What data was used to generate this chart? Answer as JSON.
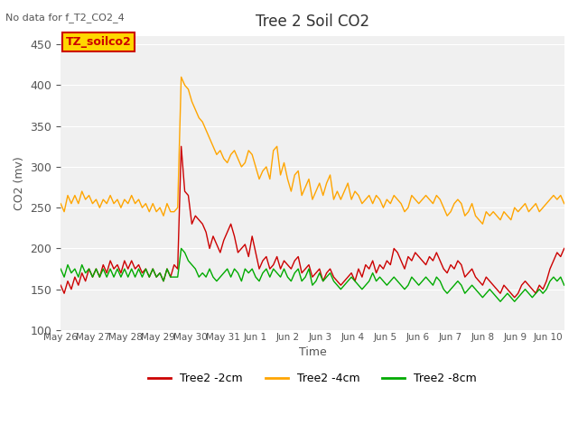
{
  "title": "Tree 2 Soil CO2",
  "subtitle": "No data for f_T2_CO2_4",
  "ylabel": "CO2 (mv)",
  "xlabel": "Time",
  "ylim": [
    100,
    460
  ],
  "xlim": [
    0,
    15.5
  ],
  "tick_labels": [
    "May 26",
    "May 27",
    "May 28",
    "May 29",
    "May 30",
    "May 31",
    "Jun 1",
    "Jun 2",
    "Jun 3",
    "Jun 4",
    "Jun 5",
    "Jun 6",
    "Jun 7",
    "Jun 8",
    "Jun 9",
    "Jun 10"
  ],
  "legend_box_label": "TZ_soilco2",
  "legend_box_color": "#FFD700",
  "legend_box_text_color": "#CC0000",
  "plot_bg_color": "#F0F0F0",
  "line_colors": {
    "2cm": "#CC0000",
    "4cm": "#FFA500",
    "8cm": "#00AA00"
  },
  "series_2cm": [
    155,
    145,
    160,
    150,
    165,
    155,
    170,
    160,
    175,
    165,
    175,
    165,
    180,
    170,
    185,
    175,
    180,
    170,
    185,
    175,
    185,
    175,
    180,
    170,
    175,
    165,
    175,
    165,
    170,
    160,
    175,
    165,
    180,
    175,
    325,
    270,
    265,
    230,
    240,
    235,
    230,
    220,
    200,
    215,
    205,
    195,
    210,
    220,
    230,
    215,
    195,
    200,
    205,
    190,
    215,
    195,
    175,
    185,
    190,
    175,
    180,
    190,
    175,
    185,
    180,
    175,
    185,
    190,
    170,
    175,
    180,
    165,
    170,
    175,
    160,
    170,
    175,
    165,
    160,
    155,
    160,
    165,
    170,
    160,
    175,
    165,
    180,
    175,
    185,
    170,
    180,
    175,
    185,
    180,
    200,
    195,
    185,
    175,
    190,
    185,
    195,
    190,
    185,
    180,
    190,
    185,
    195,
    185,
    175,
    170,
    180,
    175,
    185,
    180,
    165,
    170,
    175,
    165,
    160,
    155,
    165,
    160,
    155,
    150,
    145,
    155,
    150,
    145,
    140,
    145,
    155,
    160,
    155,
    150,
    145,
    155,
    150,
    160,
    175,
    185,
    195,
    190,
    200
  ],
  "series_4cm": [
    255,
    245,
    265,
    255,
    265,
    255,
    270,
    260,
    265,
    255,
    260,
    250,
    260,
    255,
    265,
    255,
    260,
    250,
    260,
    255,
    265,
    255,
    260,
    250,
    255,
    245,
    255,
    245,
    250,
    240,
    255,
    245,
    245,
    250,
    410,
    400,
    395,
    380,
    370,
    360,
    355,
    345,
    335,
    325,
    315,
    320,
    310,
    305,
    315,
    320,
    310,
    300,
    305,
    320,
    315,
    300,
    285,
    295,
    300,
    285,
    320,
    325,
    290,
    305,
    285,
    270,
    290,
    295,
    265,
    275,
    285,
    260,
    270,
    280,
    265,
    280,
    290,
    260,
    270,
    260,
    270,
    280,
    260,
    270,
    265,
    255,
    260,
    265,
    255,
    265,
    260,
    250,
    260,
    255,
    265,
    260,
    255,
    245,
    250,
    265,
    260,
    255,
    260,
    265,
    260,
    255,
    265,
    260,
    250,
    240,
    245,
    255,
    260,
    255,
    240,
    245,
    255,
    240,
    235,
    230,
    245,
    240,
    245,
    240,
    235,
    245,
    240,
    235,
    250,
    245,
    250,
    255,
    245,
    250,
    255,
    245,
    250,
    255,
    260,
    265,
    260,
    265,
    255
  ],
  "series_8cm": [
    175,
    165,
    180,
    170,
    175,
    165,
    180,
    170,
    175,
    165,
    175,
    165,
    175,
    165,
    175,
    165,
    175,
    165,
    175,
    165,
    175,
    165,
    175,
    165,
    175,
    165,
    175,
    165,
    170,
    160,
    175,
    165,
    165,
    165,
    200,
    195,
    185,
    180,
    175,
    165,
    170,
    165,
    175,
    165,
    160,
    165,
    170,
    175,
    165,
    175,
    170,
    160,
    175,
    170,
    175,
    165,
    160,
    170,
    175,
    165,
    175,
    170,
    165,
    175,
    165,
    160,
    170,
    175,
    160,
    165,
    175,
    155,
    160,
    170,
    160,
    165,
    170,
    160,
    155,
    150,
    155,
    160,
    165,
    160,
    155,
    150,
    155,
    160,
    170,
    160,
    165,
    160,
    155,
    160,
    165,
    160,
    155,
    150,
    155,
    165,
    160,
    155,
    160,
    165,
    160,
    155,
    165,
    160,
    150,
    145,
    150,
    155,
    160,
    155,
    145,
    150,
    155,
    150,
    145,
    140,
    145,
    150,
    145,
    140,
    135,
    140,
    145,
    140,
    135,
    140,
    145,
    150,
    145,
    140,
    145,
    150,
    145,
    150,
    160,
    165,
    160,
    165,
    155
  ]
}
